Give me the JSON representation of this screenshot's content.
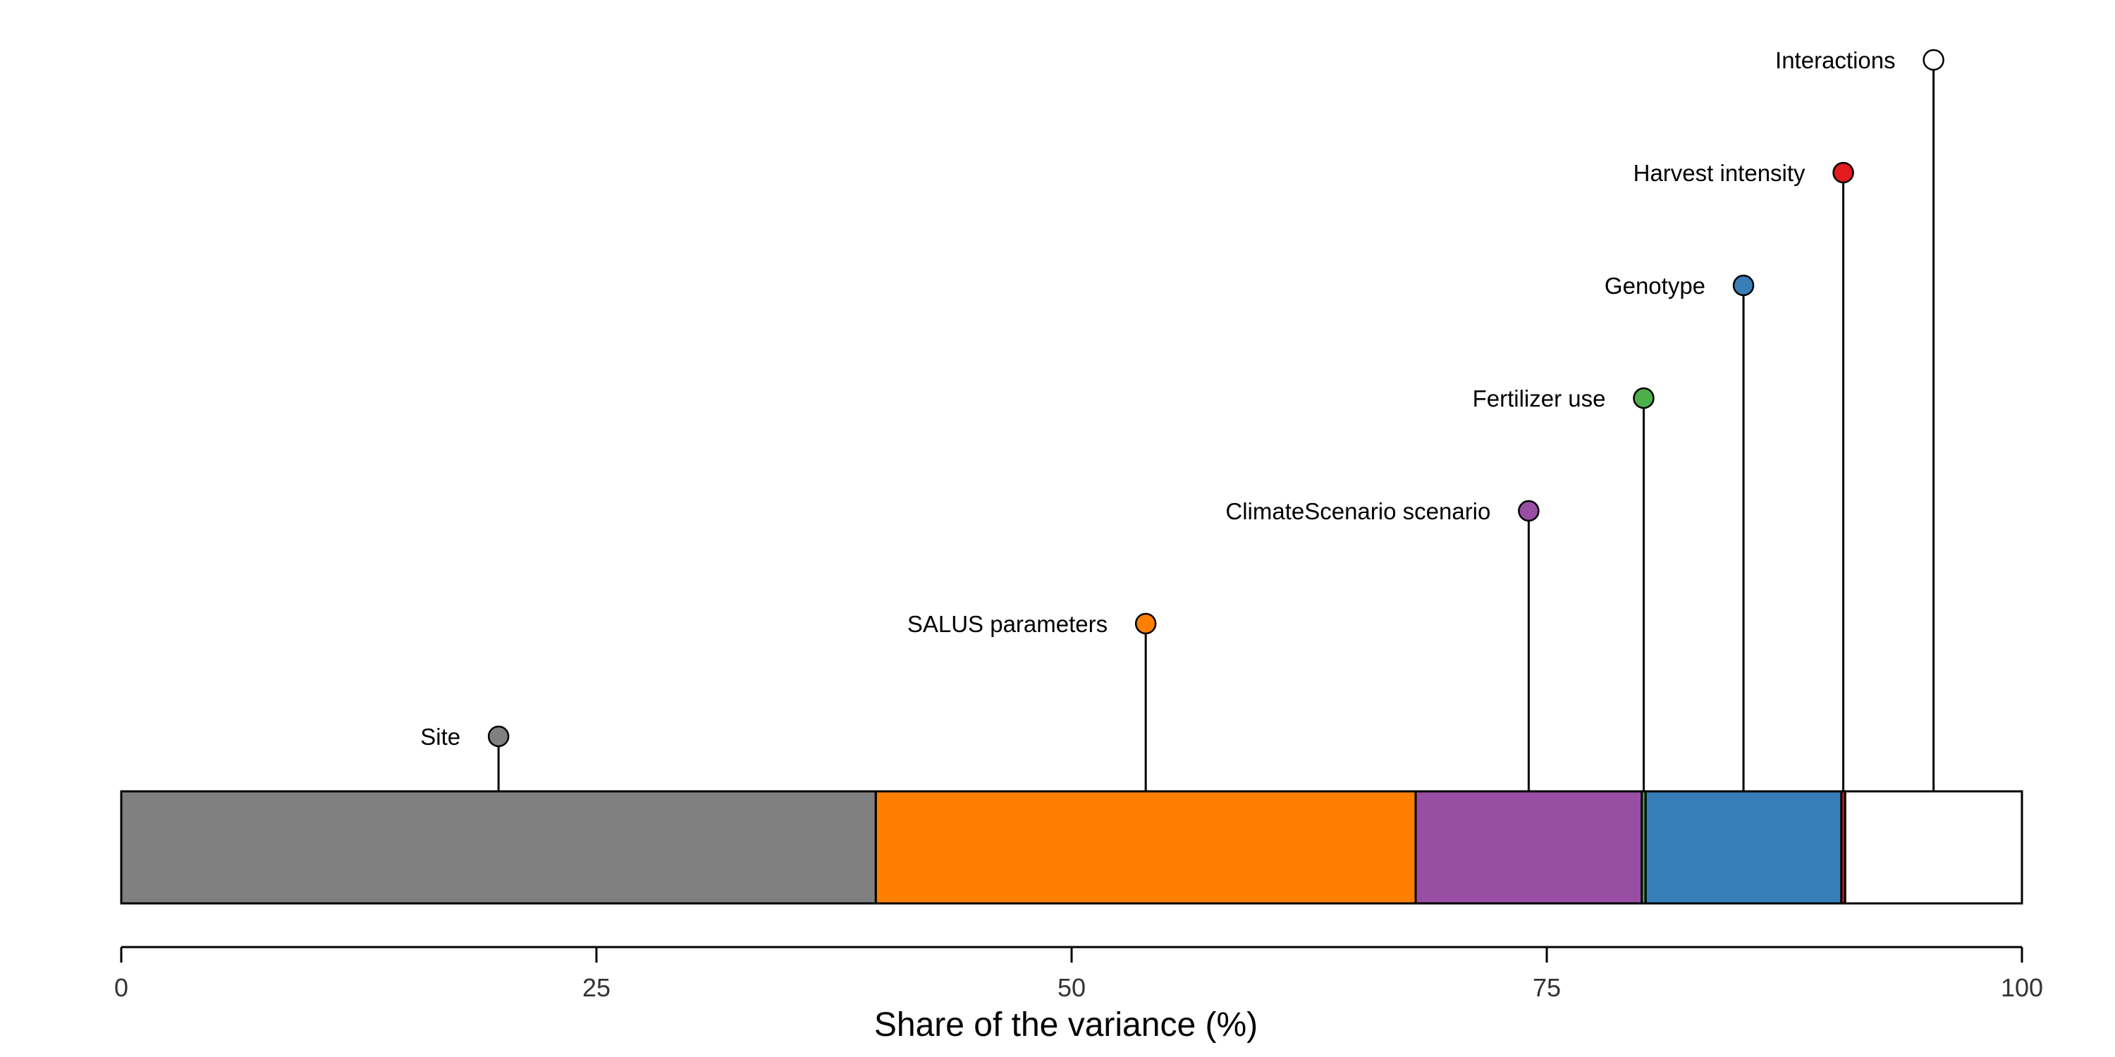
{
  "chart_data": {
    "type": "bar",
    "orientation": "horizontal-stacked",
    "xlabel": "Share of the variance (%)",
    "xlim": [
      0,
      100
    ],
    "ticks": [
      0,
      25,
      50,
      75,
      100
    ],
    "segments": [
      {
        "name": "Site",
        "value": 39.7,
        "color": "#808080"
      },
      {
        "name": "SALUS parameters",
        "value": 28.4,
        "color": "#FF7F00"
      },
      {
        "name": "ClimateScenario scenario",
        "value": 11.9,
        "color": "#984EA3"
      },
      {
        "name": "Fertilizer use",
        "value": 0.2,
        "color": "#4DAF4A"
      },
      {
        "name": "Genotype",
        "value": 10.3,
        "color": "#377EB8"
      },
      {
        "name": "Harvest intensity",
        "value": 0.2,
        "color": "#E41A1C"
      },
      {
        "name": "Interactions",
        "value": 9.3,
        "color": "#FFFFFF"
      }
    ]
  }
}
